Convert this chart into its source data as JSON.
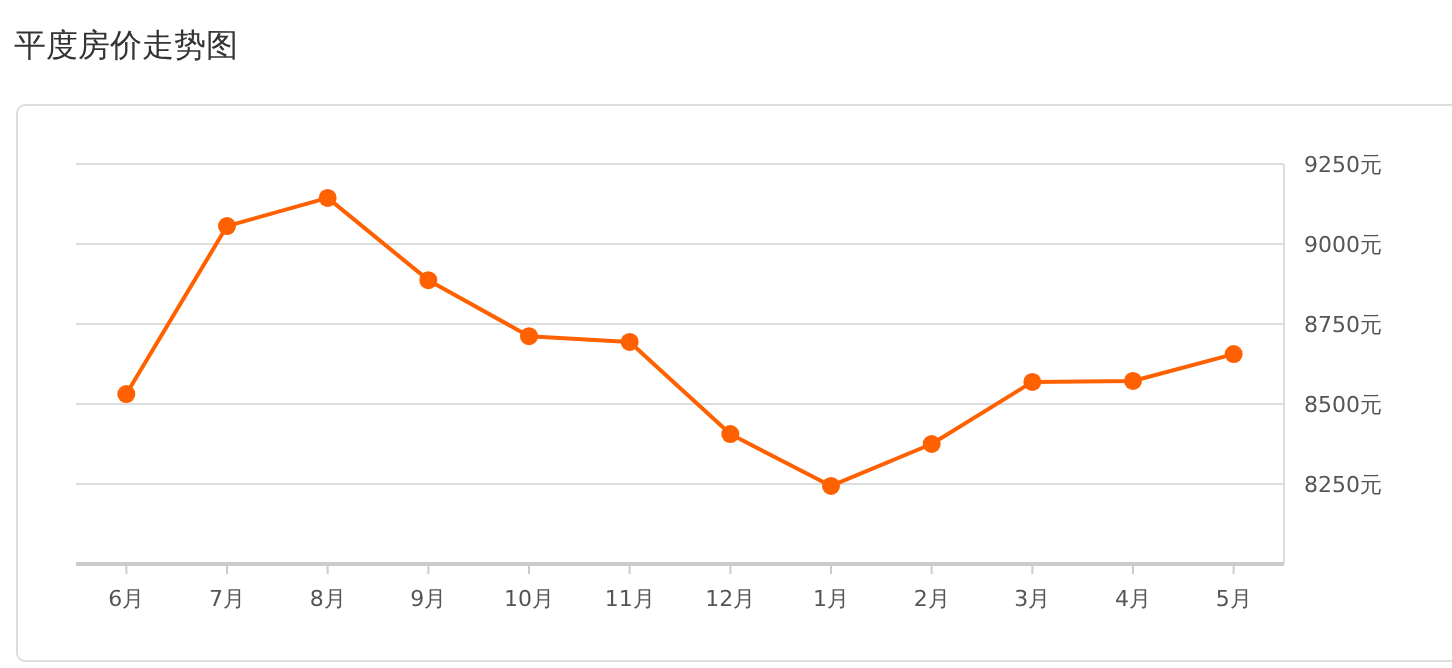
{
  "chart_data": {
    "type": "line",
    "title": "平度房价走势图",
    "categories": [
      "6月",
      "7月",
      "8月",
      "9月",
      "10月",
      "11月",
      "12月",
      "1月",
      "2月",
      "3月",
      "4月",
      "5月"
    ],
    "series": [
      {
        "color": "#ff6000",
        "values": [
          8531,
          9056,
          9144,
          8887,
          8712,
          8694,
          8406,
          8244,
          8375,
          8569,
          8572,
          8656
        ]
      }
    ],
    "ylim": [
      8000,
      9250
    ],
    "yticks": [
      {
        "value": 8250,
        "label": "8250元"
      },
      {
        "value": 8500,
        "label": "8500元"
      },
      {
        "value": 8750,
        "label": "8750元"
      },
      {
        "value": 9000,
        "label": "9000元"
      },
      {
        "value": 9250,
        "label": "9250元"
      }
    ],
    "grid": "y",
    "marker": "circle",
    "line_style": "solid"
  }
}
